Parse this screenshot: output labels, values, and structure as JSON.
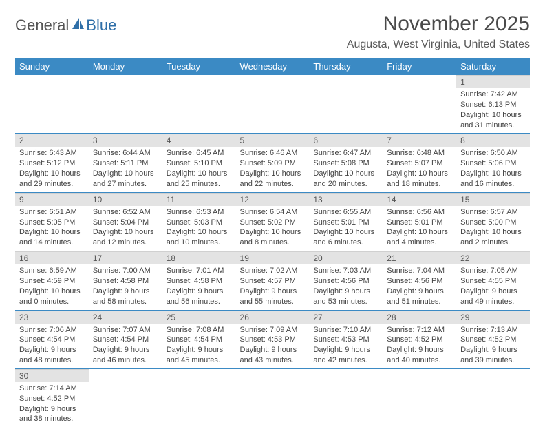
{
  "logo": {
    "text1": "General",
    "text2": "Blue"
  },
  "title": "November 2025",
  "location": "Augusta, West Virginia, United States",
  "weekday_labels": [
    "Sunday",
    "Monday",
    "Tuesday",
    "Wednesday",
    "Thursday",
    "Friday",
    "Saturday"
  ],
  "colors": {
    "header_bg": "#3b8ac4",
    "header_fg": "#ffffff",
    "daynum_bg": "#e3e3e3",
    "cell_border": "#3b8ac4",
    "text": "#444444"
  },
  "weeks": [
    [
      null,
      null,
      null,
      null,
      null,
      null,
      {
        "d": "1",
        "sr": "Sunrise: 7:42 AM",
        "ss": "Sunset: 6:13 PM",
        "dl1": "Daylight: 10 hours",
        "dl2": "and 31 minutes."
      }
    ],
    [
      {
        "d": "2",
        "sr": "Sunrise: 6:43 AM",
        "ss": "Sunset: 5:12 PM",
        "dl1": "Daylight: 10 hours",
        "dl2": "and 29 minutes."
      },
      {
        "d": "3",
        "sr": "Sunrise: 6:44 AM",
        "ss": "Sunset: 5:11 PM",
        "dl1": "Daylight: 10 hours",
        "dl2": "and 27 minutes."
      },
      {
        "d": "4",
        "sr": "Sunrise: 6:45 AM",
        "ss": "Sunset: 5:10 PM",
        "dl1": "Daylight: 10 hours",
        "dl2": "and 25 minutes."
      },
      {
        "d": "5",
        "sr": "Sunrise: 6:46 AM",
        "ss": "Sunset: 5:09 PM",
        "dl1": "Daylight: 10 hours",
        "dl2": "and 22 minutes."
      },
      {
        "d": "6",
        "sr": "Sunrise: 6:47 AM",
        "ss": "Sunset: 5:08 PM",
        "dl1": "Daylight: 10 hours",
        "dl2": "and 20 minutes."
      },
      {
        "d": "7",
        "sr": "Sunrise: 6:48 AM",
        "ss": "Sunset: 5:07 PM",
        "dl1": "Daylight: 10 hours",
        "dl2": "and 18 minutes."
      },
      {
        "d": "8",
        "sr": "Sunrise: 6:50 AM",
        "ss": "Sunset: 5:06 PM",
        "dl1": "Daylight: 10 hours",
        "dl2": "and 16 minutes."
      }
    ],
    [
      {
        "d": "9",
        "sr": "Sunrise: 6:51 AM",
        "ss": "Sunset: 5:05 PM",
        "dl1": "Daylight: 10 hours",
        "dl2": "and 14 minutes."
      },
      {
        "d": "10",
        "sr": "Sunrise: 6:52 AM",
        "ss": "Sunset: 5:04 PM",
        "dl1": "Daylight: 10 hours",
        "dl2": "and 12 minutes."
      },
      {
        "d": "11",
        "sr": "Sunrise: 6:53 AM",
        "ss": "Sunset: 5:03 PM",
        "dl1": "Daylight: 10 hours",
        "dl2": "and 10 minutes."
      },
      {
        "d": "12",
        "sr": "Sunrise: 6:54 AM",
        "ss": "Sunset: 5:02 PM",
        "dl1": "Daylight: 10 hours",
        "dl2": "and 8 minutes."
      },
      {
        "d": "13",
        "sr": "Sunrise: 6:55 AM",
        "ss": "Sunset: 5:01 PM",
        "dl1": "Daylight: 10 hours",
        "dl2": "and 6 minutes."
      },
      {
        "d": "14",
        "sr": "Sunrise: 6:56 AM",
        "ss": "Sunset: 5:01 PM",
        "dl1": "Daylight: 10 hours",
        "dl2": "and 4 minutes."
      },
      {
        "d": "15",
        "sr": "Sunrise: 6:57 AM",
        "ss": "Sunset: 5:00 PM",
        "dl1": "Daylight: 10 hours",
        "dl2": "and 2 minutes."
      }
    ],
    [
      {
        "d": "16",
        "sr": "Sunrise: 6:59 AM",
        "ss": "Sunset: 4:59 PM",
        "dl1": "Daylight: 10 hours",
        "dl2": "and 0 minutes."
      },
      {
        "d": "17",
        "sr": "Sunrise: 7:00 AM",
        "ss": "Sunset: 4:58 PM",
        "dl1": "Daylight: 9 hours",
        "dl2": "and 58 minutes."
      },
      {
        "d": "18",
        "sr": "Sunrise: 7:01 AM",
        "ss": "Sunset: 4:58 PM",
        "dl1": "Daylight: 9 hours",
        "dl2": "and 56 minutes."
      },
      {
        "d": "19",
        "sr": "Sunrise: 7:02 AM",
        "ss": "Sunset: 4:57 PM",
        "dl1": "Daylight: 9 hours",
        "dl2": "and 55 minutes."
      },
      {
        "d": "20",
        "sr": "Sunrise: 7:03 AM",
        "ss": "Sunset: 4:56 PM",
        "dl1": "Daylight: 9 hours",
        "dl2": "and 53 minutes."
      },
      {
        "d": "21",
        "sr": "Sunrise: 7:04 AM",
        "ss": "Sunset: 4:56 PM",
        "dl1": "Daylight: 9 hours",
        "dl2": "and 51 minutes."
      },
      {
        "d": "22",
        "sr": "Sunrise: 7:05 AM",
        "ss": "Sunset: 4:55 PM",
        "dl1": "Daylight: 9 hours",
        "dl2": "and 49 minutes."
      }
    ],
    [
      {
        "d": "23",
        "sr": "Sunrise: 7:06 AM",
        "ss": "Sunset: 4:54 PM",
        "dl1": "Daylight: 9 hours",
        "dl2": "and 48 minutes."
      },
      {
        "d": "24",
        "sr": "Sunrise: 7:07 AM",
        "ss": "Sunset: 4:54 PM",
        "dl1": "Daylight: 9 hours",
        "dl2": "and 46 minutes."
      },
      {
        "d": "25",
        "sr": "Sunrise: 7:08 AM",
        "ss": "Sunset: 4:54 PM",
        "dl1": "Daylight: 9 hours",
        "dl2": "and 45 minutes."
      },
      {
        "d": "26",
        "sr": "Sunrise: 7:09 AM",
        "ss": "Sunset: 4:53 PM",
        "dl1": "Daylight: 9 hours",
        "dl2": "and 43 minutes."
      },
      {
        "d": "27",
        "sr": "Sunrise: 7:10 AM",
        "ss": "Sunset: 4:53 PM",
        "dl1": "Daylight: 9 hours",
        "dl2": "and 42 minutes."
      },
      {
        "d": "28",
        "sr": "Sunrise: 7:12 AM",
        "ss": "Sunset: 4:52 PM",
        "dl1": "Daylight: 9 hours",
        "dl2": "and 40 minutes."
      },
      {
        "d": "29",
        "sr": "Sunrise: 7:13 AM",
        "ss": "Sunset: 4:52 PM",
        "dl1": "Daylight: 9 hours",
        "dl2": "and 39 minutes."
      }
    ],
    [
      {
        "d": "30",
        "sr": "Sunrise: 7:14 AM",
        "ss": "Sunset: 4:52 PM",
        "dl1": "Daylight: 9 hours",
        "dl2": "and 38 minutes."
      },
      null,
      null,
      null,
      null,
      null,
      null
    ]
  ]
}
